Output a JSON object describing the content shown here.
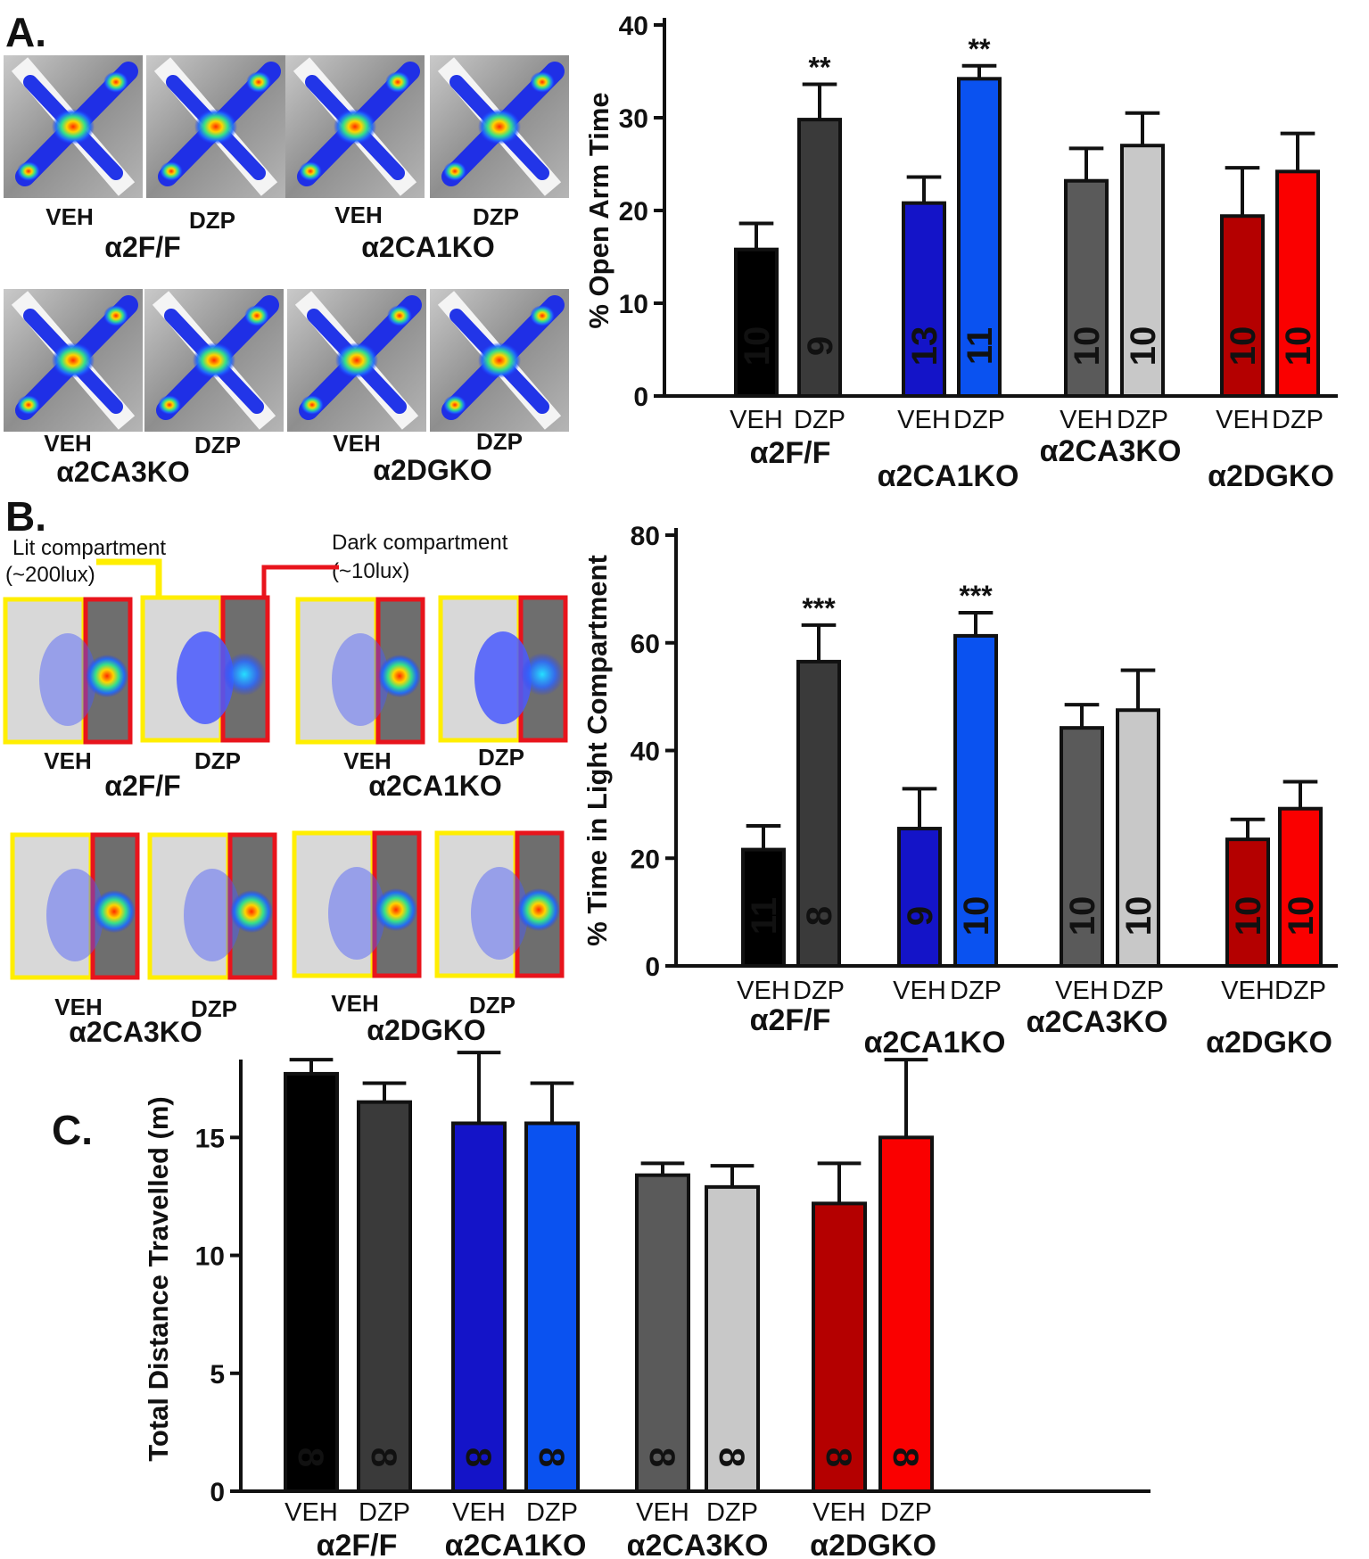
{
  "panels": {
    "a": "A.",
    "b": "B.",
    "c": "C."
  },
  "legend": {
    "lit_label": "Lit compartment",
    "lit_lux": "(~200lux)",
    "dark_label": "Dark compartment",
    "dark_lux": "(~10lux)"
  },
  "thumbs": {
    "cond_veh": "VEH",
    "cond_dzp": "DZP",
    "geno": [
      "α2F/F",
      "α2CA1KO",
      "α2CA3KO",
      "α2DGKO"
    ]
  },
  "colors": {
    "bars": [
      "#000000",
      "#3a3a3a",
      "#1414c8",
      "#0a52f0",
      "#5a5a5a",
      "#c8c8c8",
      "#b40000",
      "#fa0000"
    ],
    "nlabel": [
      "#ffffff",
      "#ffffff",
      "#ffffff",
      "#ffffff",
      "#ffffff",
      "#000000",
      "#ffffff",
      "#ffffff"
    ]
  },
  "chart_data": [
    {
      "id": "A",
      "type": "bar",
      "title": "",
      "ylabel": "% Open Arm Time",
      "ylim": [
        0,
        40
      ],
      "yticks": [
        "0",
        "10",
        "20",
        "30",
        "40"
      ],
      "categories": [
        "VEH",
        "DZP",
        "VEH",
        "DZP",
        "VEH",
        "DZP",
        "VEH",
        "DZP"
      ],
      "groups": [
        "α2F/F",
        "α2CA1KO",
        "α2CA3KO",
        "α2DGKO"
      ],
      "values": [
        15.8,
        29.8,
        20.8,
        34.2,
        23.2,
        27.0,
        19.4,
        24.2
      ],
      "errors": [
        2.8,
        3.8,
        2.8,
        1.4,
        3.5,
        3.5,
        5.2,
        4.1
      ],
      "n": [
        "10",
        "9",
        "13",
        "11",
        "10",
        "10",
        "10",
        "10"
      ],
      "significance": [
        "",
        "**",
        "",
        "**",
        "",
        "",
        "",
        ""
      ]
    },
    {
      "id": "B",
      "type": "bar",
      "title": "",
      "ylabel": "% Time in Light Compartment",
      "ylim": [
        0,
        80
      ],
      "yticks": [
        "0",
        "20",
        "40",
        "60",
        "80"
      ],
      "categories": [
        "VEH",
        "DZP",
        "VEH",
        "DZP",
        "VEH",
        "DZP",
        "VEH",
        "DZP"
      ],
      "groups": [
        "α2F/F",
        "α2CA1KO",
        "α2CA3KO",
        "α2DGKO"
      ],
      "values": [
        21.6,
        56.5,
        25.5,
        61.3,
        44.2,
        47.5,
        23.5,
        29.2
      ],
      "errors": [
        4.4,
        6.8,
        7.4,
        4.3,
        4.3,
        7.4,
        3.7,
        5.0
      ],
      "n": [
        "11",
        "8",
        "9",
        "10",
        "10",
        "10",
        "10",
        "10"
      ],
      "significance": [
        "",
        "***",
        "",
        "***",
        "",
        "",
        "",
        ""
      ]
    },
    {
      "id": "C",
      "type": "bar",
      "title": "",
      "ylabel": "Total Distance Travelled (m)",
      "ylim": [
        0,
        18
      ],
      "yticks": [
        "0",
        "5",
        "10",
        "15"
      ],
      "categories": [
        "VEH",
        "DZP",
        "VEH",
        "DZP",
        "VEH",
        "DZP",
        "VEH",
        "DZP"
      ],
      "groups": [
        "α2F/F",
        "α2CA1KO",
        "α2CA3KO",
        "α2DGKO"
      ],
      "values": [
        17.7,
        16.5,
        15.6,
        15.6,
        13.4,
        12.9,
        12.2,
        15.0
      ],
      "errors": [
        0.6,
        0.8,
        3.0,
        1.7,
        0.5,
        0.9,
        1.7,
        3.3
      ],
      "n": [
        "8",
        "8",
        "8",
        "8",
        "8",
        "8",
        "8",
        "8"
      ],
      "significance": [
        "",
        "",
        "",
        "",
        "",
        "",
        "",
        ""
      ]
    }
  ]
}
